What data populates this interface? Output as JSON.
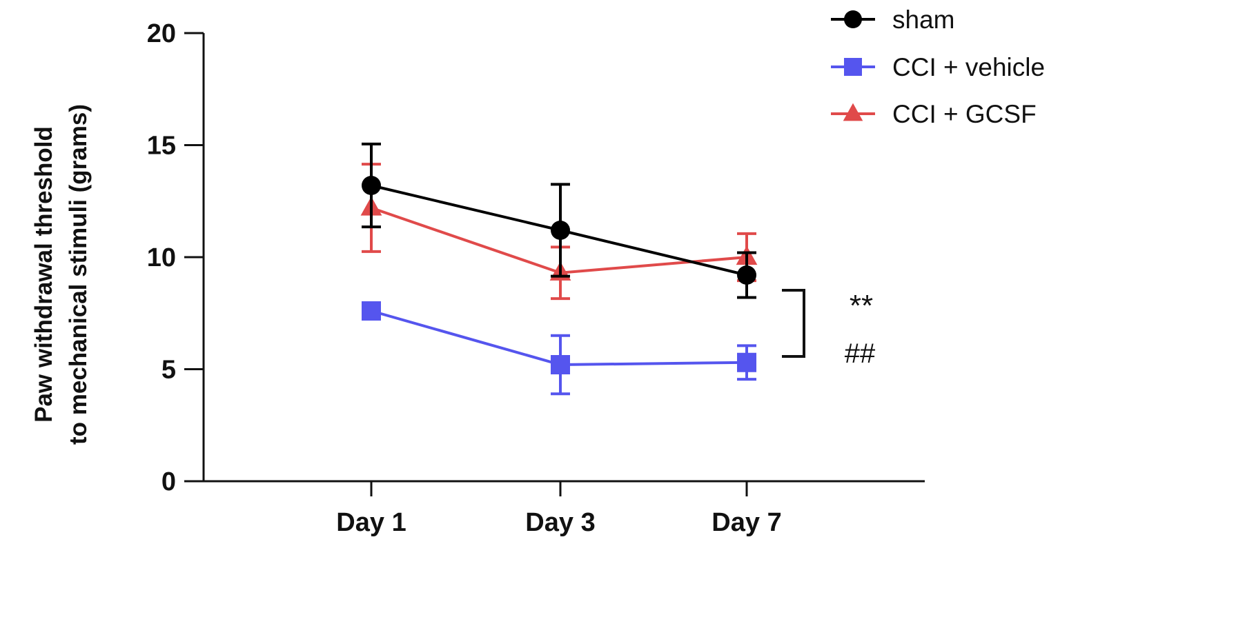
{
  "chart_data": {
    "type": "line",
    "title": "",
    "xlabel": "",
    "ylabel": [
      "Paw withdrawal threshold",
      "to mechanical stimuli (grams)"
    ],
    "categories": [
      "Day 1",
      "Day 3",
      "Day 7"
    ],
    "ylim": [
      0,
      20
    ],
    "yticks": [
      "0",
      "5",
      "10",
      "15",
      "20"
    ],
    "legend_position": "top-right",
    "series": [
      {
        "name": "sham",
        "color": "#000000",
        "marker": "circle",
        "values": [
          13.2,
          11.2,
          9.2
        ],
        "errors": [
          1.85,
          2.05,
          1.0
        ]
      },
      {
        "name": "CCI + vehicle",
        "color": "#5555ee",
        "marker": "square",
        "values": [
          7.6,
          5.2,
          5.3
        ],
        "errors": [
          0.2,
          1.3,
          0.75
        ]
      },
      {
        "name": "CCI + GCSF",
        "color": "#e04a4a",
        "marker": "triangle",
        "values": [
          12.2,
          9.3,
          10.0
        ],
        "errors": [
          1.95,
          1.15,
          1.05
        ]
      }
    ],
    "annotations": [
      "**",
      "##"
    ]
  }
}
